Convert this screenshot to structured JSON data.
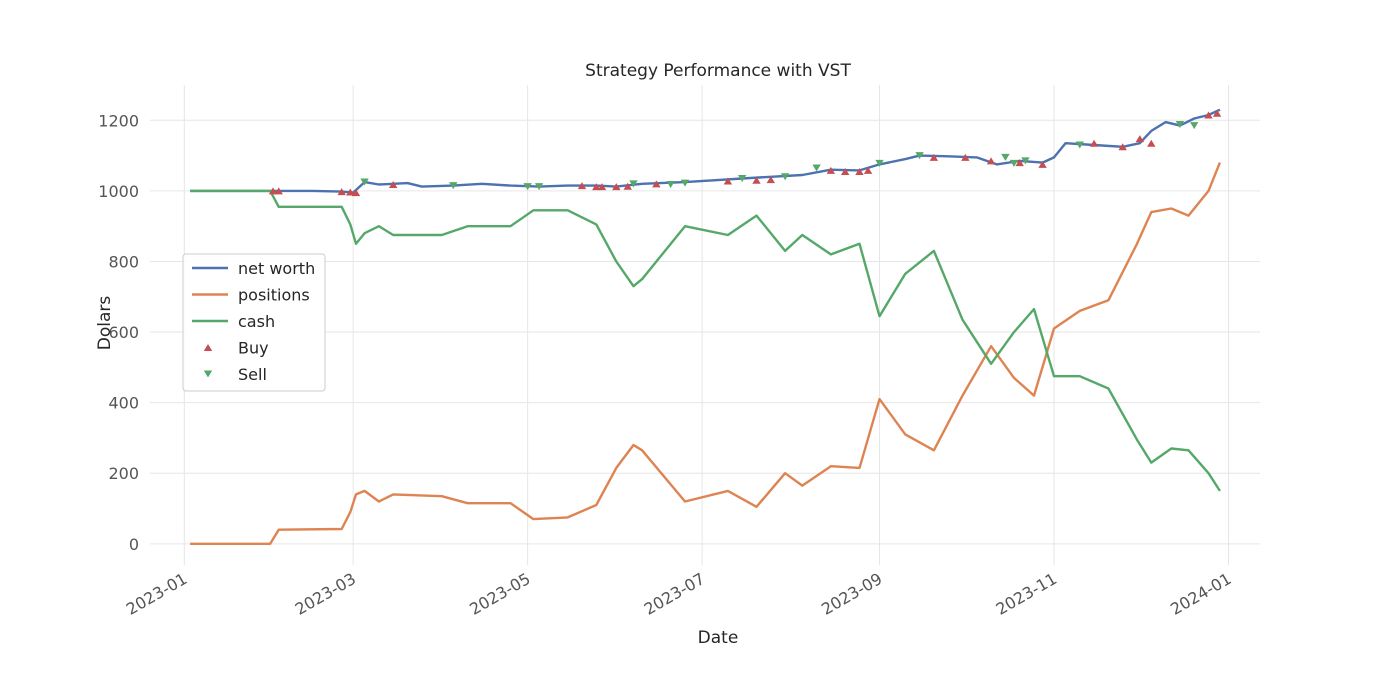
{
  "chart_data": {
    "type": "line",
    "title": "Strategy Performance with VST",
    "xlabel": "Date",
    "ylabel": "Dolars",
    "x_ticks": [
      "2023-01",
      "2023-03",
      "2023-05",
      "2023-07",
      "2023-09",
      "2023-11",
      "2024-01"
    ],
    "y_ticks": [
      0,
      200,
      400,
      600,
      800,
      1000,
      1200
    ],
    "xlim": [
      "2022-12-20",
      "2024-01-12"
    ],
    "ylim": [
      -60,
      1300
    ],
    "grid": true,
    "legend_position": "center-left",
    "series": [
      {
        "name": "net worth",
        "color": "#4c72b0",
        "points": [
          [
            "2023-01-03",
            1000
          ],
          [
            "2023-02-01",
            1000
          ],
          [
            "2023-02-15",
            1000
          ],
          [
            "2023-02-25",
            998
          ],
          [
            "2023-03-01",
            995
          ],
          [
            "2023-03-05",
            1025
          ],
          [
            "2023-03-10",
            1018
          ],
          [
            "2023-03-20",
            1022
          ],
          [
            "2023-03-25",
            1012
          ],
          [
            "2023-04-05",
            1015
          ],
          [
            "2023-04-15",
            1020
          ],
          [
            "2023-04-25",
            1015
          ],
          [
            "2023-05-05",
            1012
          ],
          [
            "2023-05-15",
            1015
          ],
          [
            "2023-05-25",
            1015
          ],
          [
            "2023-06-01",
            1012
          ],
          [
            "2023-06-10",
            1020
          ],
          [
            "2023-06-25",
            1025
          ],
          [
            "2023-07-05",
            1030
          ],
          [
            "2023-07-15",
            1035
          ],
          [
            "2023-07-25",
            1040
          ],
          [
            "2023-08-05",
            1045
          ],
          [
            "2023-08-15",
            1060
          ],
          [
            "2023-08-25",
            1058
          ],
          [
            "2023-09-01",
            1075
          ],
          [
            "2023-09-10",
            1090
          ],
          [
            "2023-09-15",
            1100
          ],
          [
            "2023-09-25",
            1098
          ],
          [
            "2023-10-05",
            1095
          ],
          [
            "2023-10-12",
            1075
          ],
          [
            "2023-10-20",
            1085
          ],
          [
            "2023-10-28",
            1080
          ],
          [
            "2023-11-01",
            1095
          ],
          [
            "2023-11-05",
            1135
          ],
          [
            "2023-11-15",
            1130
          ],
          [
            "2023-11-25",
            1125
          ],
          [
            "2023-12-01",
            1135
          ],
          [
            "2023-12-05",
            1170
          ],
          [
            "2023-12-10",
            1195
          ],
          [
            "2023-12-15",
            1185
          ],
          [
            "2023-12-20",
            1205
          ],
          [
            "2023-12-25",
            1215
          ],
          [
            "2023-12-29",
            1230
          ]
        ]
      },
      {
        "name": "positions",
        "color": "#dd8452",
        "points": [
          [
            "2023-01-03",
            0
          ],
          [
            "2023-01-31",
            0
          ],
          [
            "2023-02-03",
            40
          ],
          [
            "2023-02-25",
            42
          ],
          [
            "2023-02-28",
            90
          ],
          [
            "2023-03-02",
            140
          ],
          [
            "2023-03-05",
            150
          ],
          [
            "2023-03-10",
            120
          ],
          [
            "2023-03-15",
            140
          ],
          [
            "2023-04-01",
            135
          ],
          [
            "2023-04-10",
            115
          ],
          [
            "2023-04-25",
            115
          ],
          [
            "2023-05-03",
            70
          ],
          [
            "2023-05-15",
            75
          ],
          [
            "2023-05-25",
            110
          ],
          [
            "2023-06-01",
            215
          ],
          [
            "2023-06-07",
            280
          ],
          [
            "2023-06-10",
            265
          ],
          [
            "2023-06-25",
            120
          ],
          [
            "2023-07-10",
            150
          ],
          [
            "2023-07-20",
            105
          ],
          [
            "2023-07-30",
            200
          ],
          [
            "2023-08-05",
            165
          ],
          [
            "2023-08-15",
            220
          ],
          [
            "2023-08-25",
            215
          ],
          [
            "2023-09-01",
            410
          ],
          [
            "2023-09-10",
            310
          ],
          [
            "2023-09-20",
            265
          ],
          [
            "2023-09-30",
            420
          ],
          [
            "2023-10-10",
            560
          ],
          [
            "2023-10-18",
            470
          ],
          [
            "2023-10-25",
            420
          ],
          [
            "2023-11-01",
            610
          ],
          [
            "2023-11-10",
            660
          ],
          [
            "2023-11-20",
            690
          ],
          [
            "2023-11-30",
            850
          ],
          [
            "2023-12-05",
            940
          ],
          [
            "2023-12-12",
            950
          ],
          [
            "2023-12-18",
            930
          ],
          [
            "2023-12-25",
            1000
          ],
          [
            "2023-12-29",
            1080
          ]
        ]
      },
      {
        "name": "cash",
        "color": "#55a868",
        "points": [
          [
            "2023-01-03",
            1000
          ],
          [
            "2023-01-31",
            1000
          ],
          [
            "2023-02-03",
            955
          ],
          [
            "2023-02-25",
            955
          ],
          [
            "2023-02-28",
            905
          ],
          [
            "2023-03-02",
            850
          ],
          [
            "2023-03-05",
            880
          ],
          [
            "2023-03-10",
            900
          ],
          [
            "2023-03-15",
            875
          ],
          [
            "2023-04-01",
            875
          ],
          [
            "2023-04-10",
            900
          ],
          [
            "2023-04-25",
            900
          ],
          [
            "2023-05-03",
            945
          ],
          [
            "2023-05-15",
            945
          ],
          [
            "2023-05-25",
            905
          ],
          [
            "2023-06-01",
            800
          ],
          [
            "2023-06-07",
            730
          ],
          [
            "2023-06-10",
            750
          ],
          [
            "2023-06-25",
            900
          ],
          [
            "2023-07-10",
            875
          ],
          [
            "2023-07-20",
            930
          ],
          [
            "2023-07-30",
            830
          ],
          [
            "2023-08-05",
            875
          ],
          [
            "2023-08-15",
            820
          ],
          [
            "2023-08-25",
            850
          ],
          [
            "2023-09-01",
            645
          ],
          [
            "2023-09-10",
            765
          ],
          [
            "2023-09-20",
            830
          ],
          [
            "2023-09-30",
            635
          ],
          [
            "2023-10-10",
            510
          ],
          [
            "2023-10-18",
            600
          ],
          [
            "2023-10-25",
            665
          ],
          [
            "2023-11-01",
            475
          ],
          [
            "2023-11-10",
            475
          ],
          [
            "2023-11-20",
            440
          ],
          [
            "2023-11-30",
            295
          ],
          [
            "2023-12-05",
            230
          ],
          [
            "2023-12-12",
            270
          ],
          [
            "2023-12-18",
            265
          ],
          [
            "2023-12-25",
            200
          ],
          [
            "2023-12-29",
            150
          ]
        ]
      }
    ],
    "markers": [
      {
        "name": "Buy",
        "color": "#c44e52",
        "shape": "triangle-up",
        "points": [
          [
            "2023-02-01",
            1000
          ],
          [
            "2023-02-03",
            1000
          ],
          [
            "2023-02-25",
            998
          ],
          [
            "2023-02-28",
            997
          ],
          [
            "2023-03-02",
            995
          ],
          [
            "2023-03-15",
            1018
          ],
          [
            "2023-05-20",
            1015
          ],
          [
            "2023-05-25",
            1012
          ],
          [
            "2023-05-27",
            1012
          ],
          [
            "2023-06-01",
            1012
          ],
          [
            "2023-06-05",
            1013
          ],
          [
            "2023-06-15",
            1020
          ],
          [
            "2023-07-10",
            1028
          ],
          [
            "2023-07-20",
            1030
          ],
          [
            "2023-07-25",
            1032
          ],
          [
            "2023-08-15",
            1058
          ],
          [
            "2023-08-20",
            1055
          ],
          [
            "2023-08-25",
            1055
          ],
          [
            "2023-08-28",
            1058
          ],
          [
            "2023-09-20",
            1095
          ],
          [
            "2023-10-01",
            1095
          ],
          [
            "2023-10-10",
            1085
          ],
          [
            "2023-10-20",
            1080
          ],
          [
            "2023-10-28",
            1075
          ],
          [
            "2023-11-15",
            1135
          ],
          [
            "2023-11-25",
            1125
          ],
          [
            "2023-12-01",
            1148
          ],
          [
            "2023-12-05",
            1135
          ],
          [
            "2023-12-25",
            1215
          ],
          [
            "2023-12-28",
            1220
          ]
        ]
      },
      {
        "name": "Sell",
        "color": "#55a868",
        "shape": "triangle-down",
        "points": [
          [
            "2023-03-05",
            1025
          ],
          [
            "2023-04-05",
            1015
          ],
          [
            "2023-05-01",
            1012
          ],
          [
            "2023-05-05",
            1012
          ],
          [
            "2023-06-07",
            1020
          ],
          [
            "2023-06-20",
            1018
          ],
          [
            "2023-06-25",
            1022
          ],
          [
            "2023-07-15",
            1035
          ],
          [
            "2023-07-30",
            1040
          ],
          [
            "2023-08-10",
            1065
          ],
          [
            "2023-09-01",
            1078
          ],
          [
            "2023-09-15",
            1100
          ],
          [
            "2023-10-15",
            1095
          ],
          [
            "2023-10-18",
            1078
          ],
          [
            "2023-10-22",
            1085
          ],
          [
            "2023-11-10",
            1130
          ],
          [
            "2023-12-15",
            1188
          ],
          [
            "2023-12-20",
            1185
          ]
        ]
      }
    ]
  }
}
